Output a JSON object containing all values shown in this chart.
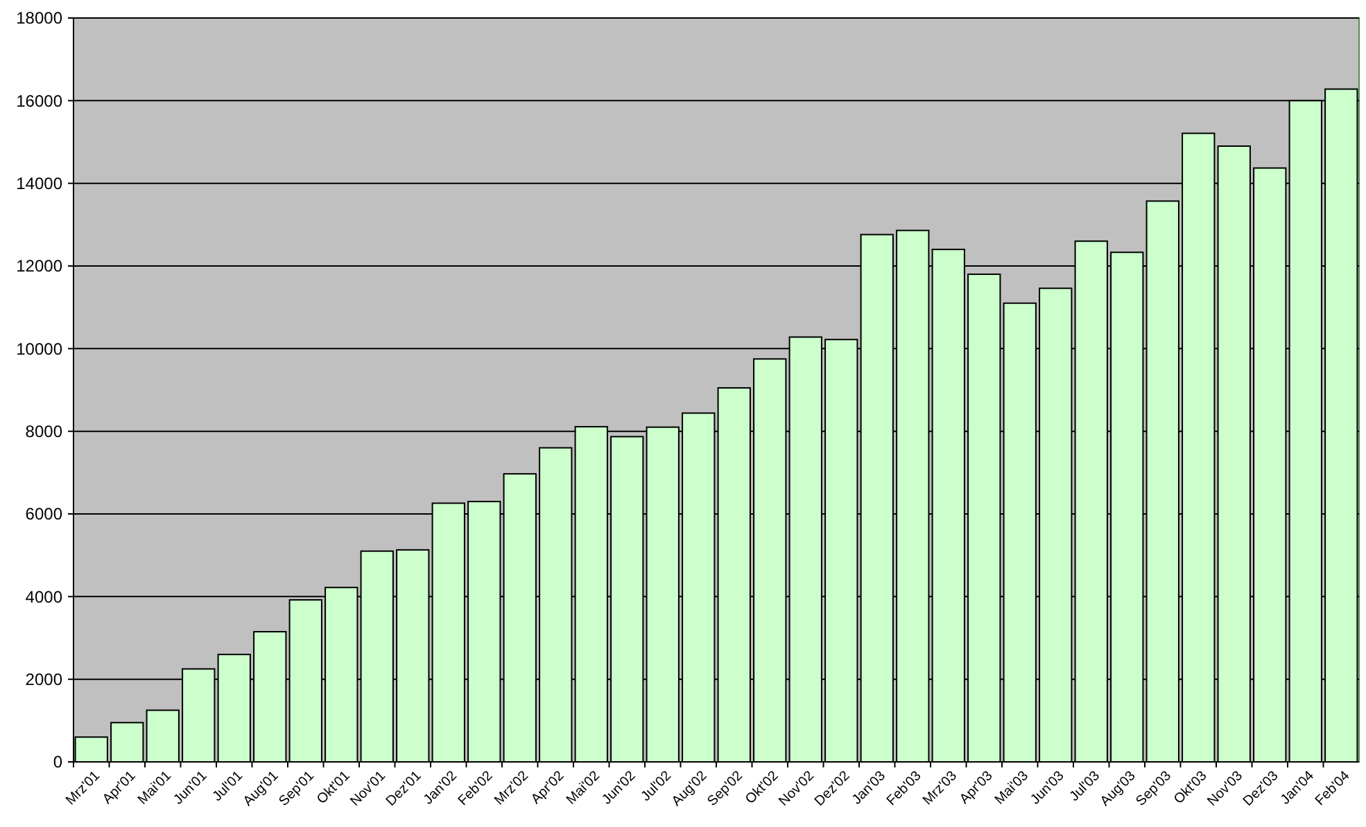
{
  "chart_data": {
    "type": "bar",
    "categories": [
      "Mrz'01",
      "Apr'01",
      "Mai'01",
      "Jun'01",
      "Jul'01",
      "Aug'01",
      "Sep'01",
      "Okt'01",
      "Nov'01",
      "Dez'01",
      "Jan'02",
      "Feb'02",
      "Mrz'02",
      "Apr'02",
      "Mai'02",
      "Jun'02",
      "Jul'02",
      "Aug'02",
      "Sep'02",
      "Okt'02",
      "Nov'02",
      "Dez'02",
      "Jan'03",
      "Feb'03",
      "Mrz'03",
      "Apr'03",
      "Mai'03",
      "Jun'03",
      "Jul'03",
      "Aug'03",
      "Sep'03",
      "Okt'03",
      "Nov'03",
      "Dez'03",
      "Jan'04",
      "Feb'04"
    ],
    "values": [
      600,
      950,
      1250,
      2250,
      2600,
      3150,
      3920,
      4220,
      5100,
      5130,
      6260,
      6300,
      6970,
      7600,
      8110,
      7870,
      8100,
      8440,
      9050,
      9750,
      10280,
      10220,
      12760,
      12860,
      12400,
      11800,
      11100,
      11460,
      12600,
      12330,
      13570,
      15210,
      14900,
      14370,
      16000,
      16280
    ],
    "color": "#ccffcc",
    "ylim": [
      0,
      18000
    ],
    "yticks": [
      0,
      2000,
      4000,
      6000,
      8000,
      10000,
      12000,
      14000,
      16000,
      18000
    ],
    "grid": "y"
  }
}
